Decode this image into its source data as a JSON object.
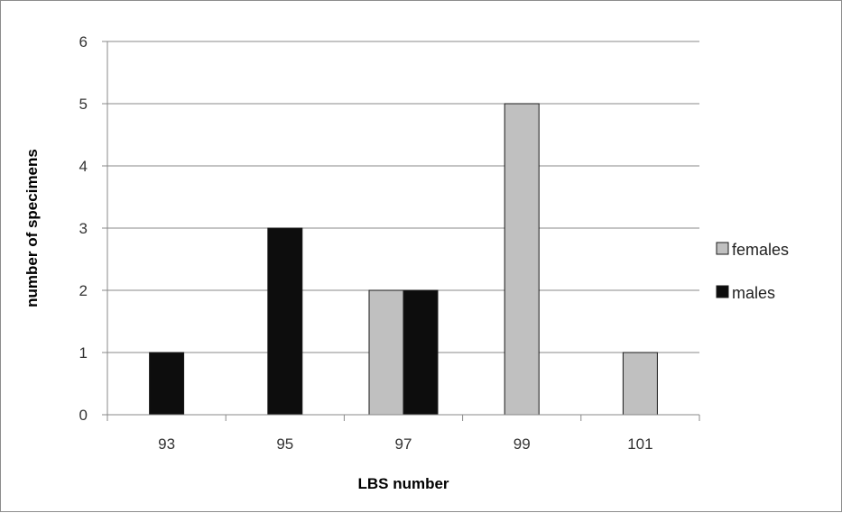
{
  "chart_data": {
    "type": "bar",
    "title": "",
    "xlabel": "LBS number",
    "ylabel": "number of specimens",
    "categories": [
      "93",
      "95",
      "97",
      "99",
      "101"
    ],
    "series": [
      {
        "name": "females",
        "values": [
          0,
          0,
          2,
          5,
          1
        ],
        "color": "#c0c0c0"
      },
      {
        "name": "males",
        "values": [
          1,
          3,
          2,
          0,
          0
        ],
        "color": "#0d0d0d"
      }
    ],
    "ylim": [
      0,
      6
    ],
    "yticks": [
      "0",
      "1",
      "2",
      "3",
      "4",
      "5",
      "6"
    ],
    "grid": true,
    "legend_position": "right"
  }
}
